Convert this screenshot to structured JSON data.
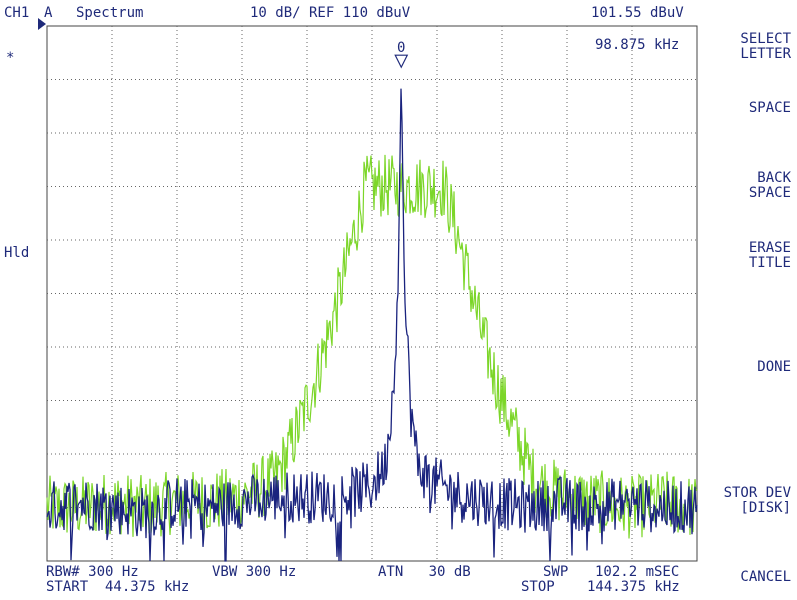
{
  "header": {
    "channel": "CH1",
    "trace": "A",
    "mode": "Spectrum",
    "scale_ref": "10 dB/ REF 110 dBuV",
    "marker_level": "101.55 dBuV",
    "marker_freq": "98.875 kHz"
  },
  "left": {
    "asterisk": "*",
    "hold": "Hld"
  },
  "marker_label": "0",
  "footer": {
    "rbw": "RBW# 300 Hz",
    "vbw": "VBW 300 Hz",
    "atn": "ATN   30 dB",
    "swp": "SWP",
    "swp_time": "102.2 mSEC",
    "start": "START  44.375 kHz",
    "stop": "STOP",
    "stop_freq": "144.375 kHz"
  },
  "softkeys": {
    "select_letter": "SELECT\nLETTER",
    "space": "SPACE",
    "back_space": "BACK\nSPACE",
    "erase_title": "ERASE\nTITLE",
    "done": "DONE",
    "stor_dev": "STOR DEV\n[DISK]",
    "cancel": "CANCEL"
  },
  "chart_data": {
    "type": "line",
    "x_range_khz": [
      44.375,
      144.375
    ],
    "ref_level_dbuv": 110,
    "db_per_div": 10,
    "y_divisions": 10,
    "x_divisions": 10,
    "grid": true,
    "marker": {
      "x_khz": 98.875,
      "y_dbuv": 101.55
    },
    "series": [
      {
        "color": "#1a237e",
        "x_khz": [
          44.375,
          49.375,
          54.375,
          59.375,
          64.375,
          69.375,
          74.375,
          79.375,
          84.375,
          89.375,
          94.375,
          96.375,
          97.375,
          98.375,
          98.875,
          99.375,
          100.375,
          101.375,
          103.375,
          108.375,
          113.375,
          118.375,
          123.375,
          128.375,
          133.375,
          138.375,
          144.375
        ],
        "y_dbuv": [
          20,
          21,
          20,
          19,
          21,
          20,
          21,
          22,
          22,
          22,
          24,
          28,
          38,
          60,
          101.5,
          60,
          38,
          28,
          25,
          22,
          21,
          20,
          21,
          20,
          21,
          20,
          20
        ]
      },
      {
        "color": "#7cd629",
        "x_khz": [
          44.375,
          49.375,
          54.375,
          59.375,
          64.375,
          69.375,
          74.375,
          79.375,
          81.375,
          83.375,
          85.375,
          87.375,
          89.375,
          91.375,
          93.375,
          95.375,
          97.375,
          99.375,
          101.375,
          103.375,
          105.375,
          107.375,
          109.375,
          111.375,
          113.375,
          115.375,
          117.375,
          119.375,
          124.375,
          129.375,
          134.375,
          139.375,
          144.375
        ],
        "y_dbuv": [
          20,
          20,
          21,
          20,
          21,
          21,
          22,
          25,
          30,
          36,
          43,
          51,
          60,
          70,
          80,
          80,
          80,
          80,
          80,
          80,
          80,
          72,
          62,
          52,
          44,
          37,
          31,
          25,
          22,
          21,
          20,
          21,
          20
        ]
      }
    ]
  }
}
